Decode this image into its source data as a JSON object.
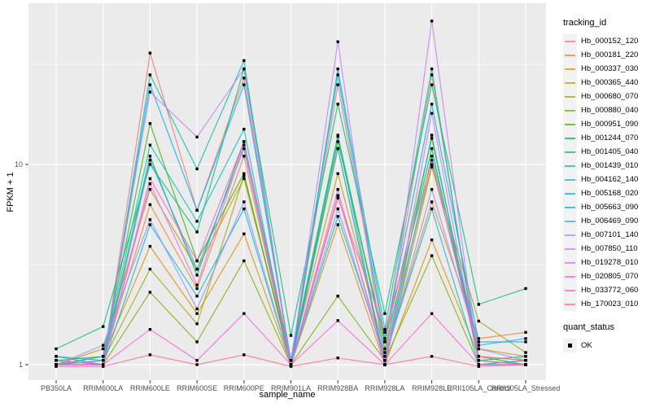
{
  "chart_data": {
    "type": "line",
    "title": "",
    "xlabel": "sample_name",
    "ylabel": "FPKM + 1",
    "y_scale": "log10",
    "y_tick_labels": [
      "1",
      "10"
    ],
    "y_tick_values": [
      1,
      10
    ],
    "y_minor_values": [
      3.1623,
      31.623
    ],
    "ylim": [
      0.85,
      63
    ],
    "grid": "on",
    "legend_position": "right",
    "point_shape": "filled-square",
    "categories": [
      "PB350LA",
      "RRIM600LA",
      "RRIM600LE",
      "RRIM600SE",
      "RRIM600PE",
      "RRIM901LA",
      "RRIM928BA",
      "RRIM928LA",
      "RRIM928LE",
      "RRII105LA_Control",
      "RRII105LA_Stressed"
    ],
    "series": [
      {
        "name": "Hb_000152_120",
        "color": "#F8766D",
        "values": [
          1.05,
          1.0,
          36,
          5.9,
          27,
          1.0,
          25,
          1.3,
          28,
          1.05,
          1.0
        ]
      },
      {
        "name": "Hb_000181_220",
        "color": "#EA8331",
        "values": [
          1.0,
          1.05,
          6.3,
          2.4,
          11,
          1.0,
          7.0,
          1.1,
          6.5,
          1.35,
          1.45
        ]
      },
      {
        "name": "Hb_000337_030",
        "color": "#D89000",
        "values": [
          1.0,
          1.1,
          3.9,
          1.8,
          4.5,
          1.0,
          5.0,
          1.0,
          4.2,
          1.1,
          1.05
        ]
      },
      {
        "name": "Hb_000365_440",
        "color": "#C09B00",
        "values": [
          1.0,
          1.2,
          7.5,
          3.0,
          8.5,
          1.05,
          9.0,
          1.15,
          10,
          1.2,
          1.1
        ]
      },
      {
        "name": "Hb_000680_070",
        "color": "#A3A500",
        "values": [
          1.0,
          1.05,
          3.0,
          1.6,
          8.8,
          1.0,
          12,
          1.0,
          9.7,
          1.65,
          1.15
        ]
      },
      {
        "name": "Hb_000880_040",
        "color": "#7CAE00",
        "values": [
          1.0,
          1.0,
          2.3,
          1.3,
          3.3,
          1.0,
          2.2,
          1.05,
          3.5,
          1.0,
          1.05
        ]
      },
      {
        "name": "Hb_000951_090",
        "color": "#39B600",
        "values": [
          1.05,
          1.1,
          16,
          3.3,
          9.0,
          1.0,
          13,
          1.3,
          13.5,
          1.1,
          1.0
        ]
      },
      {
        "name": "Hb_001244_070",
        "color": "#00BB4E",
        "values": [
          1.0,
          1.05,
          11,
          2.8,
          13,
          1.05,
          14,
          1.2,
          12,
          1.05,
          1.1
        ]
      },
      {
        "name": "Hb_001405_040",
        "color": "#00BF7D",
        "values": [
          1.2,
          1.55,
          10,
          4.6,
          30,
          1.4,
          20,
          1.8,
          25,
          2.0,
          2.4
        ]
      },
      {
        "name": "Hb_001439_010",
        "color": "#00C1A3",
        "values": [
          1.1,
          1.0,
          28,
          9.5,
          33,
          1.0,
          30,
          1.5,
          30,
          1.0,
          1.05
        ]
      },
      {
        "name": "Hb_004162_140",
        "color": "#00BFC4",
        "values": [
          1.0,
          1.1,
          12.5,
          5.2,
          15,
          1.0,
          13.8,
          1.0,
          14,
          1.05,
          1.0
        ]
      },
      {
        "name": "Hb_005168_020",
        "color": "#00BAE0",
        "values": [
          1.0,
          1.0,
          5.0,
          2.2,
          6.0,
          1.0,
          5.5,
          1.1,
          6.0,
          1.0,
          1.0
        ]
      },
      {
        "name": "Hb_005663_090",
        "color": "#00B0F6",
        "values": [
          1.1,
          1.05,
          25,
          5.9,
          25,
          1.05,
          28,
          1.35,
          20,
          1.3,
          1.3
        ]
      },
      {
        "name": "Hb_006469_090",
        "color": "#35A2FF",
        "values": [
          1.05,
          1.0,
          10.5,
          3.0,
          12,
          1.0,
          12,
          1.0,
          11,
          1.25,
          1.35
        ]
      },
      {
        "name": "Hb_007101_140",
        "color": "#9590FF",
        "values": [
          1.0,
          1.25,
          5.3,
          1.9,
          6.5,
          1.0,
          6.0,
          1.05,
          7.5,
          1.2,
          1.05
        ]
      },
      {
        "name": "Hb_007850_110",
        "color": "#C77CFF",
        "values": [
          1.0,
          1.05,
          23,
          13.7,
          30,
          1.0,
          41,
          1.0,
          52,
          1.0,
          1.0
        ]
      },
      {
        "name": "Hb_019278_010",
        "color": "#E76BF3",
        "values": [
          1.0,
          1.0,
          8.0,
          2.5,
          12.5,
          1.0,
          7.5,
          1.0,
          18,
          1.05,
          1.0
        ]
      },
      {
        "name": "Hb_020805_070",
        "color": "#FA62DB",
        "values": [
          1.0,
          1.0,
          1.5,
          1.05,
          1.8,
          1.0,
          1.66,
          1.0,
          1.8,
          1.0,
          1.0
        ]
      },
      {
        "name": "Hb_033772_060",
        "color": "#FF62BC",
        "values": [
          1.05,
          1.0,
          8.5,
          3.3,
          13,
          1.0,
          6.8,
          1.45,
          10.5,
          1.1,
          1.05
        ]
      },
      {
        "name": "Hb_170023_010",
        "color": "#FF6A98",
        "values": [
          0.98,
          0.98,
          1.12,
          1.0,
          1.12,
          0.98,
          1.08,
          1.0,
          1.1,
          0.98,
          1.0
        ]
      }
    ],
    "legend": {
      "tracking_title": "tracking_id",
      "quant_title": "quant_status",
      "quant_label": "OK"
    },
    "style": {
      "panel_bg": "#EBEBEB",
      "grid_color": "#FFFFFF",
      "point_color": "#000000",
      "tick_color": "#333333",
      "tick_label_color": "#4D4D4D"
    }
  }
}
